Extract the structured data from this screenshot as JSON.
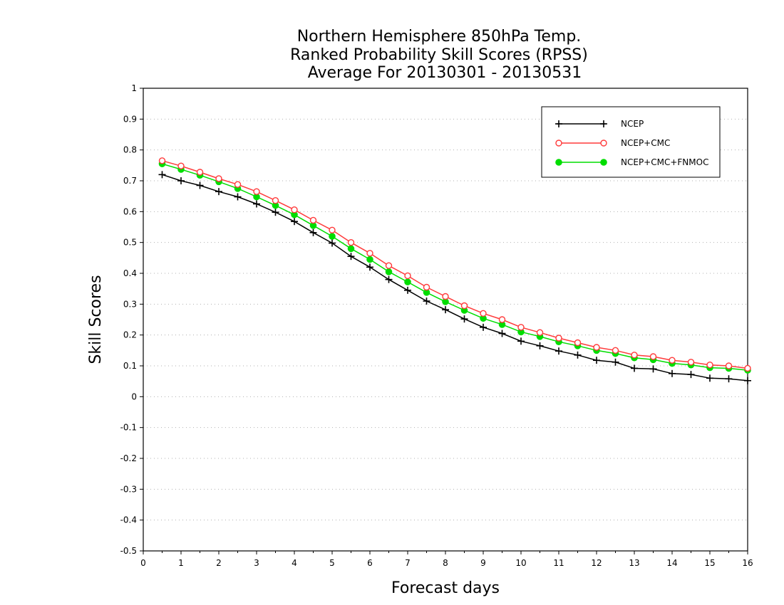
{
  "chart_data": {
    "type": "line",
    "title_lines": [
      "Northern Hemisphere 850hPa Temp.",
      "Ranked Probability Skill Scores (RPSS)",
      "Average For 20130301 - 20130531"
    ],
    "xlabel": "Forecast days",
    "ylabel": "Skill Scores",
    "xlim": [
      0,
      16
    ],
    "ylim": [
      -0.5,
      1
    ],
    "x_ticks": [
      "0",
      "1",
      "2",
      "3",
      "4",
      "5",
      "6",
      "7",
      "8",
      "9",
      "10",
      "11",
      "12",
      "13",
      "14",
      "15",
      "16"
    ],
    "y_ticks": [
      "-0.5",
      "-0.4",
      "-0.3",
      "-0.2",
      "-0.1",
      "0",
      "0.1",
      "0.2",
      "0.3",
      "0.4",
      "0.5",
      "0.6",
      "0.7",
      "0.8",
      "0.9",
      "1"
    ],
    "grid": "horizontal dotted",
    "legend_position": "top-right",
    "x": [
      0.5,
      1,
      1.5,
      2,
      2.5,
      3,
      3.5,
      4,
      4.5,
      5,
      5.5,
      6,
      6.5,
      7,
      7.5,
      8,
      8.5,
      9,
      9.5,
      10,
      10.5,
      11,
      11.5,
      12,
      12.5,
      13,
      13.5,
      14,
      14.5,
      15,
      15.5,
      16
    ],
    "series": [
      {
        "name": "NCEP",
        "color": "#000000",
        "marker": "plus",
        "values": [
          0.72,
          0.7,
          0.685,
          0.665,
          0.648,
          0.625,
          0.598,
          0.568,
          0.532,
          0.498,
          0.455,
          0.42,
          0.38,
          0.345,
          0.31,
          0.282,
          0.252,
          0.225,
          0.205,
          0.18,
          0.165,
          0.148,
          0.135,
          0.118,
          0.112,
          0.092,
          0.09,
          0.075,
          0.072,
          0.06,
          0.058,
          0.052
        ]
      },
      {
        "name": "NCEP+CMC",
        "color": "#ff3a3a",
        "marker": "open-circle",
        "values": [
          0.765,
          0.748,
          0.728,
          0.707,
          0.688,
          0.665,
          0.636,
          0.606,
          0.572,
          0.54,
          0.5,
          0.465,
          0.425,
          0.392,
          0.355,
          0.325,
          0.295,
          0.27,
          0.25,
          0.225,
          0.208,
          0.19,
          0.175,
          0.16,
          0.15,
          0.135,
          0.13,
          0.118,
          0.112,
          0.103,
          0.1,
          0.092
        ]
      },
      {
        "name": "NCEP+CMC+FNMOC",
        "color": "#00dd00",
        "marker": "filled-circle",
        "values": [
          0.755,
          0.737,
          0.718,
          0.697,
          0.675,
          0.648,
          0.62,
          0.59,
          0.555,
          0.52,
          0.48,
          0.445,
          0.405,
          0.372,
          0.338,
          0.308,
          0.28,
          0.254,
          0.234,
          0.21,
          0.195,
          0.178,
          0.165,
          0.15,
          0.14,
          0.126,
          0.12,
          0.108,
          0.103,
          0.094,
          0.092,
          0.086
        ]
      }
    ]
  }
}
